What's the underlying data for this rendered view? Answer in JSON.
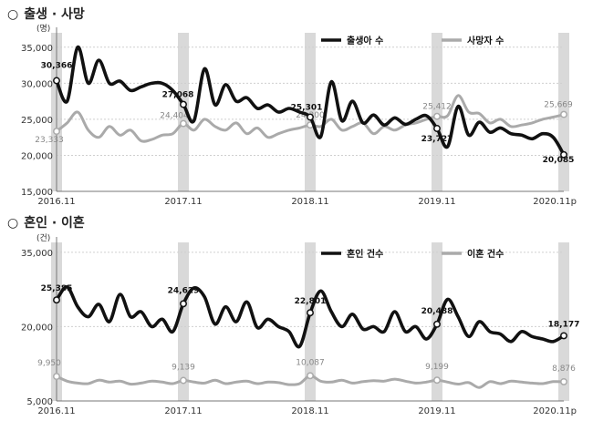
{
  "sections": [
    {
      "bullet": "○",
      "title": "출생 · 사망"
    },
    {
      "bullet": "○",
      "title": "혼인 · 이혼"
    }
  ],
  "chart_data": [
    {
      "type": "line",
      "unit": "(명)",
      "ylim": [
        15000,
        37000
      ],
      "yticks": [
        15000,
        20000,
        25000,
        30000,
        35000
      ],
      "ytick_labels": [
        "15,000",
        "20,000",
        "25,000",
        "30,000",
        "35,000"
      ],
      "xticks": [
        0,
        12,
        24,
        36,
        48
      ],
      "xtick_labels": [
        "2016.11",
        "2017.11",
        "2018.11",
        "2019.11",
        "2020.11p"
      ],
      "highlight_months": [
        0,
        12,
        24,
        36,
        48
      ],
      "grid": true,
      "legend_position": "top-right",
      "series": [
        {
          "name": "출생아 수",
          "color": "#111111",
          "values": [
            30366,
            27500,
            35000,
            30000,
            33200,
            30000,
            30300,
            29000,
            29500,
            30000,
            30000,
            29000,
            27068,
            24800,
            32000,
            27000,
            29800,
            27500,
            28000,
            26500,
            27000,
            26000,
            26500,
            26000,
            25301,
            22600,
            30200,
            24800,
            27500,
            24500,
            25600,
            24200,
            25200,
            24300,
            25000,
            25500,
            23727,
            21200,
            26800,
            22800,
            24600,
            23200,
            23800,
            23000,
            22800,
            22300,
            23000,
            22500,
            20085
          ],
          "point_labels": [
            {
              "index": 0,
              "text": "30,366"
            },
            {
              "index": 12,
              "text": "27,068"
            },
            {
              "index": 24,
              "text": "25,301"
            },
            {
              "index": 36,
              "text": "23,727"
            },
            {
              "index": 48,
              "text": "20,085"
            }
          ]
        },
        {
          "name": "사망자 수",
          "color": "#aaaaaa",
          "values": [
            23333,
            24500,
            26000,
            23500,
            22500,
            24000,
            22800,
            23500,
            22000,
            22200,
            22800,
            23000,
            24404,
            23500,
            25000,
            24000,
            23500,
            24500,
            23000,
            23800,
            22500,
            23000,
            23500,
            23800,
            24200,
            24000,
            25000,
            23500,
            24000,
            24500,
            23000,
            24000,
            23500,
            24200,
            24500,
            25000,
            25412,
            25500,
            28300,
            26000,
            25800,
            24500,
            25000,
            24000,
            24200,
            24500,
            25000,
            25300,
            25669
          ],
          "point_labels": [
            {
              "index": 0,
              "text": "23,333"
            },
            {
              "index": 12,
              "text": "24,404"
            },
            {
              "index": 24,
              "text": "24,200"
            },
            {
              "index": 36,
              "text": "25,412"
            },
            {
              "index": 48,
              "text": "25,669"
            }
          ]
        }
      ]
    },
    {
      "type": "line",
      "unit": "(건)",
      "ylim": [
        5000,
        37000
      ],
      "yticks": [
        5000,
        20000,
        35000
      ],
      "ytick_labels": [
        "5,000",
        "20,000",
        "35,000"
      ],
      "xticks": [
        0,
        12,
        24,
        36,
        48
      ],
      "xtick_labels": [
        "2016.11",
        "2017.11",
        "2018.11",
        "2019.11",
        "2020.11p"
      ],
      "highlight_months": [
        0,
        12,
        24,
        36,
        48
      ],
      "grid": true,
      "legend_position": "top-right",
      "series": [
        {
          "name": "혼인 건수",
          "color": "#111111",
          "values": [
            25385,
            28000,
            24000,
            22000,
            24500,
            21000,
            26500,
            22000,
            23000,
            20000,
            21500,
            19000,
            24629,
            27800,
            26000,
            20500,
            24000,
            21000,
            25000,
            19800,
            21500,
            20000,
            19000,
            16000,
            22801,
            27200,
            23000,
            20000,
            22500,
            19500,
            20000,
            19000,
            23000,
            19000,
            20000,
            17500,
            20488,
            25500,
            22000,
            18000,
            21000,
            19000,
            18500,
            17000,
            19000,
            18000,
            17500,
            17000,
            18177
          ],
          "point_labels": [
            {
              "index": 0,
              "text": "25,385"
            },
            {
              "index": 12,
              "text": "24,629"
            },
            {
              "index": 24,
              "text": "22,801"
            },
            {
              "index": 36,
              "text": "20,488"
            },
            {
              "index": 48,
              "text": "18,177"
            }
          ]
        },
        {
          "name": "이혼 건수",
          "color": "#aaaaaa",
          "values": [
            9950,
            9000,
            8600,
            8500,
            9200,
            8800,
            9000,
            8400,
            8600,
            9000,
            8800,
            8500,
            9139,
            8800,
            8600,
            9200,
            8500,
            8800,
            9000,
            8500,
            8800,
            8700,
            8300,
            8500,
            10087,
            9000,
            8800,
            9200,
            8600,
            8900,
            9100,
            9000,
            9400,
            9000,
            8600,
            8800,
            9199,
            8800,
            8400,
            8700,
            7700,
            8900,
            8500,
            9000,
            8800,
            8600,
            8500,
            8900,
            8876
          ],
          "point_labels": [
            {
              "index": 0,
              "text": "9,950"
            },
            {
              "index": 12,
              "text": "9,139"
            },
            {
              "index": 24,
              "text": "10,087"
            },
            {
              "index": 36,
              "text": "9,199"
            },
            {
              "index": 48,
              "text": "8,876"
            }
          ]
        }
      ]
    }
  ]
}
